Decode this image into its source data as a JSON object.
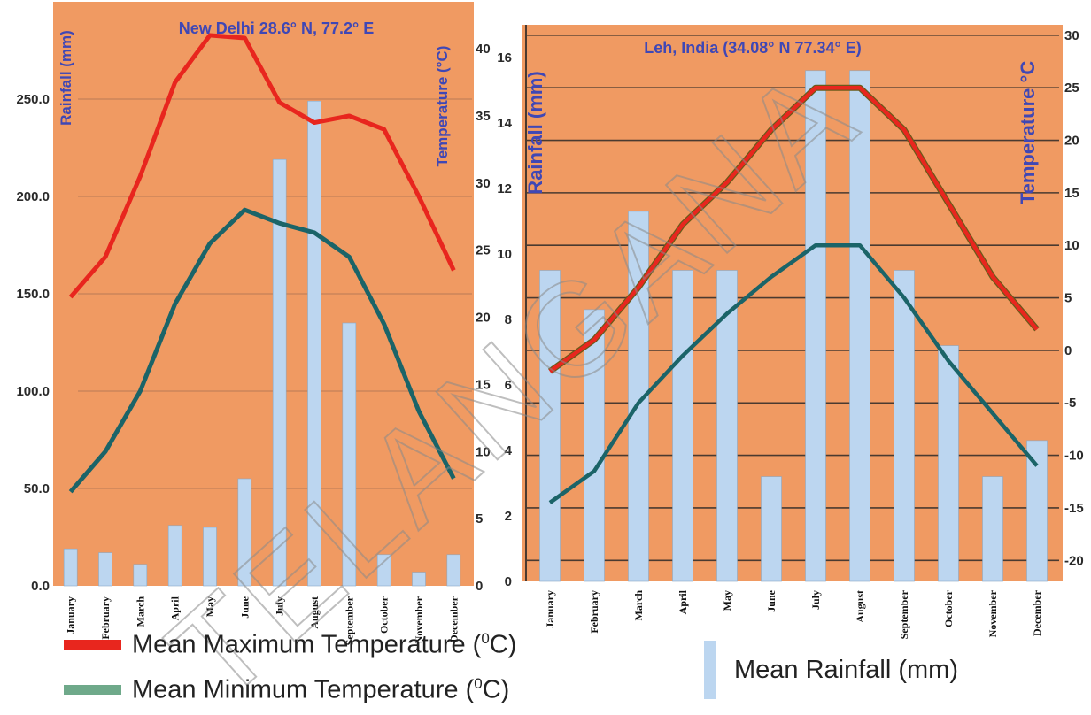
{
  "colors": {
    "background": "#f09a62",
    "rainfall_bar": "#bcd6f0",
    "max_temp": "#e8261e",
    "min_temp": "#1b6468",
    "title_text": "#3f47b5",
    "axis_text": "#2a2a2a",
    "watermark": "#8a8a8a",
    "legend_min_swatch": "#6fa98a",
    "legend_rain_swatch": "#bcd6f0"
  },
  "watermark": {
    "text": "TELANGANA"
  },
  "chart_data": [
    {
      "type": "bar+line",
      "title": "New Delhi 28.6° N, 77.2° E",
      "ylabel_left": "Rainfall (mm)",
      "ylabel_right": "Temperature (°C)",
      "categories": [
        "January",
        "February",
        "March",
        "April",
        "May",
        "June",
        "July",
        "August",
        "September",
        "October",
        "November",
        "December"
      ],
      "rain_ylim": [
        0,
        300
      ],
      "rain_ticks": [
        "0.0",
        "50.0",
        "100.0",
        "150.0",
        "200.0",
        "250.0"
      ],
      "rain_tick_values": [
        0,
        50,
        100,
        150,
        200,
        250
      ],
      "temp_ylim": [
        0,
        43.5
      ],
      "temp_ticks": [
        "0",
        "5",
        "10",
        "15",
        "20",
        "25",
        "30",
        "35",
        "40"
      ],
      "temp_tick_values": [
        0,
        5,
        10,
        15,
        20,
        25,
        30,
        35,
        40
      ],
      "grid": true,
      "series": [
        {
          "kind": "bar",
          "name": "Mean Rainfall (mm)",
          "axis": "left",
          "values": [
            19,
            17,
            11,
            31,
            30,
            55,
            219,
            249,
            135,
            16,
            7,
            16
          ]
        },
        {
          "kind": "line",
          "name": "Mean Maximum Temperature (0C)",
          "axis": "right",
          "values": [
            21.5,
            24.5,
            30.5,
            37.5,
            41,
            40.8,
            36,
            34.5,
            35,
            34,
            29,
            23.5
          ]
        },
        {
          "kind": "line",
          "name": "Mean Minimum Temperature (0C)",
          "axis": "right",
          "values": [
            7,
            10,
            14.5,
            21,
            25.5,
            28,
            27,
            26.3,
            24.5,
            19.5,
            13,
            8
          ]
        }
      ]
    },
    {
      "type": "bar+line",
      "title": "Leh, India (34.08° N 77.34° E)",
      "ylabel_left": "Rainfall (mm)",
      "ylabel_right": "Temperature °C",
      "categories": [
        "January",
        "February",
        "March",
        "April",
        "May",
        "June",
        "July",
        "August",
        "September",
        "October",
        "November",
        "December"
      ],
      "rain_ylim": [
        0,
        17
      ],
      "rain_ticks": [
        "0",
        "2",
        "4",
        "6",
        "8",
        "10",
        "12",
        "14",
        "16"
      ],
      "rain_tick_values": [
        0,
        2,
        4,
        6,
        8,
        10,
        12,
        14,
        16
      ],
      "temp_ylim": [
        -22,
        31
      ],
      "temp_ticks": [
        "-20",
        "-15",
        "-10",
        "-5",
        "0",
        "5",
        "10",
        "15",
        "20",
        "25",
        "30"
      ],
      "temp_tick_values": [
        -20,
        -15,
        -10,
        -5,
        0,
        5,
        10,
        15,
        20,
        25,
        30
      ],
      "grid": true,
      "series": [
        {
          "kind": "bar",
          "name": "Mean Rainfall (mm)",
          "axis": "left",
          "values": [
            9.5,
            8.3,
            11.3,
            9.5,
            9.5,
            3.2,
            15.6,
            15.6,
            9.5,
            7.2,
            3.2,
            4.3
          ]
        },
        {
          "kind": "line",
          "name": "Mean Maximum Temperature (0C)",
          "axis": "right",
          "values": [
            -2,
            1,
            6,
            12,
            16,
            21,
            25,
            25,
            21,
            14,
            7,
            2
          ]
        },
        {
          "kind": "line",
          "name": "Mean Minimum Temperature (0C)",
          "axis": "right",
          "values": [
            -14.5,
            -11.5,
            -5,
            -0.5,
            3.5,
            7,
            10,
            10,
            5,
            -1,
            -6,
            -11
          ]
        }
      ]
    }
  ],
  "legend": {
    "max_label": "Mean Maximum Temperature (",
    "min_label": "Mean Minimum Temperature (",
    "deg_sup": "0",
    "unit_close": "C)",
    "rain_label": "Mean Rainfall (mm)"
  }
}
